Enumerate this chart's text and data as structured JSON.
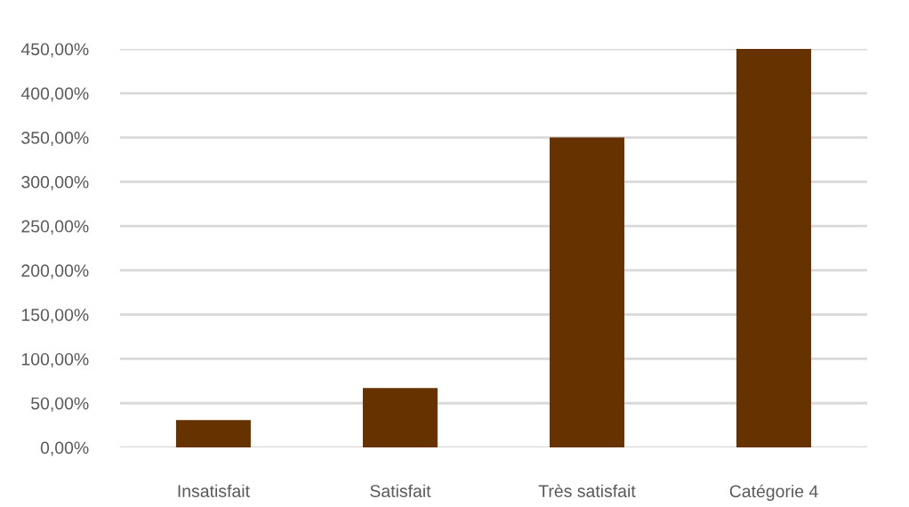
{
  "chart_data": {
    "type": "bar",
    "categories": [
      "Insatisfait",
      "Satisfait",
      "Très satisfait",
      "Catégorie 4"
    ],
    "values": [
      31,
      67,
      350,
      450
    ],
    "color": "#663300",
    "ylim": [
      0,
      450
    ],
    "yticks": [
      {
        "value": 0,
        "label": "0,00%"
      },
      {
        "value": 50,
        "label": "50,00%"
      },
      {
        "value": 100,
        "label": "100,00%"
      },
      {
        "value": 150,
        "label": "150,00%"
      },
      {
        "value": 200,
        "label": "200,00%"
      },
      {
        "value": 250,
        "label": "250,00%"
      },
      {
        "value": 300,
        "label": "300,00%"
      },
      {
        "value": 350,
        "label": "350,00%"
      },
      {
        "value": 400,
        "label": "400,00%"
      },
      {
        "value": 450,
        "label": "450,00%"
      }
    ],
    "grid": "y"
  }
}
